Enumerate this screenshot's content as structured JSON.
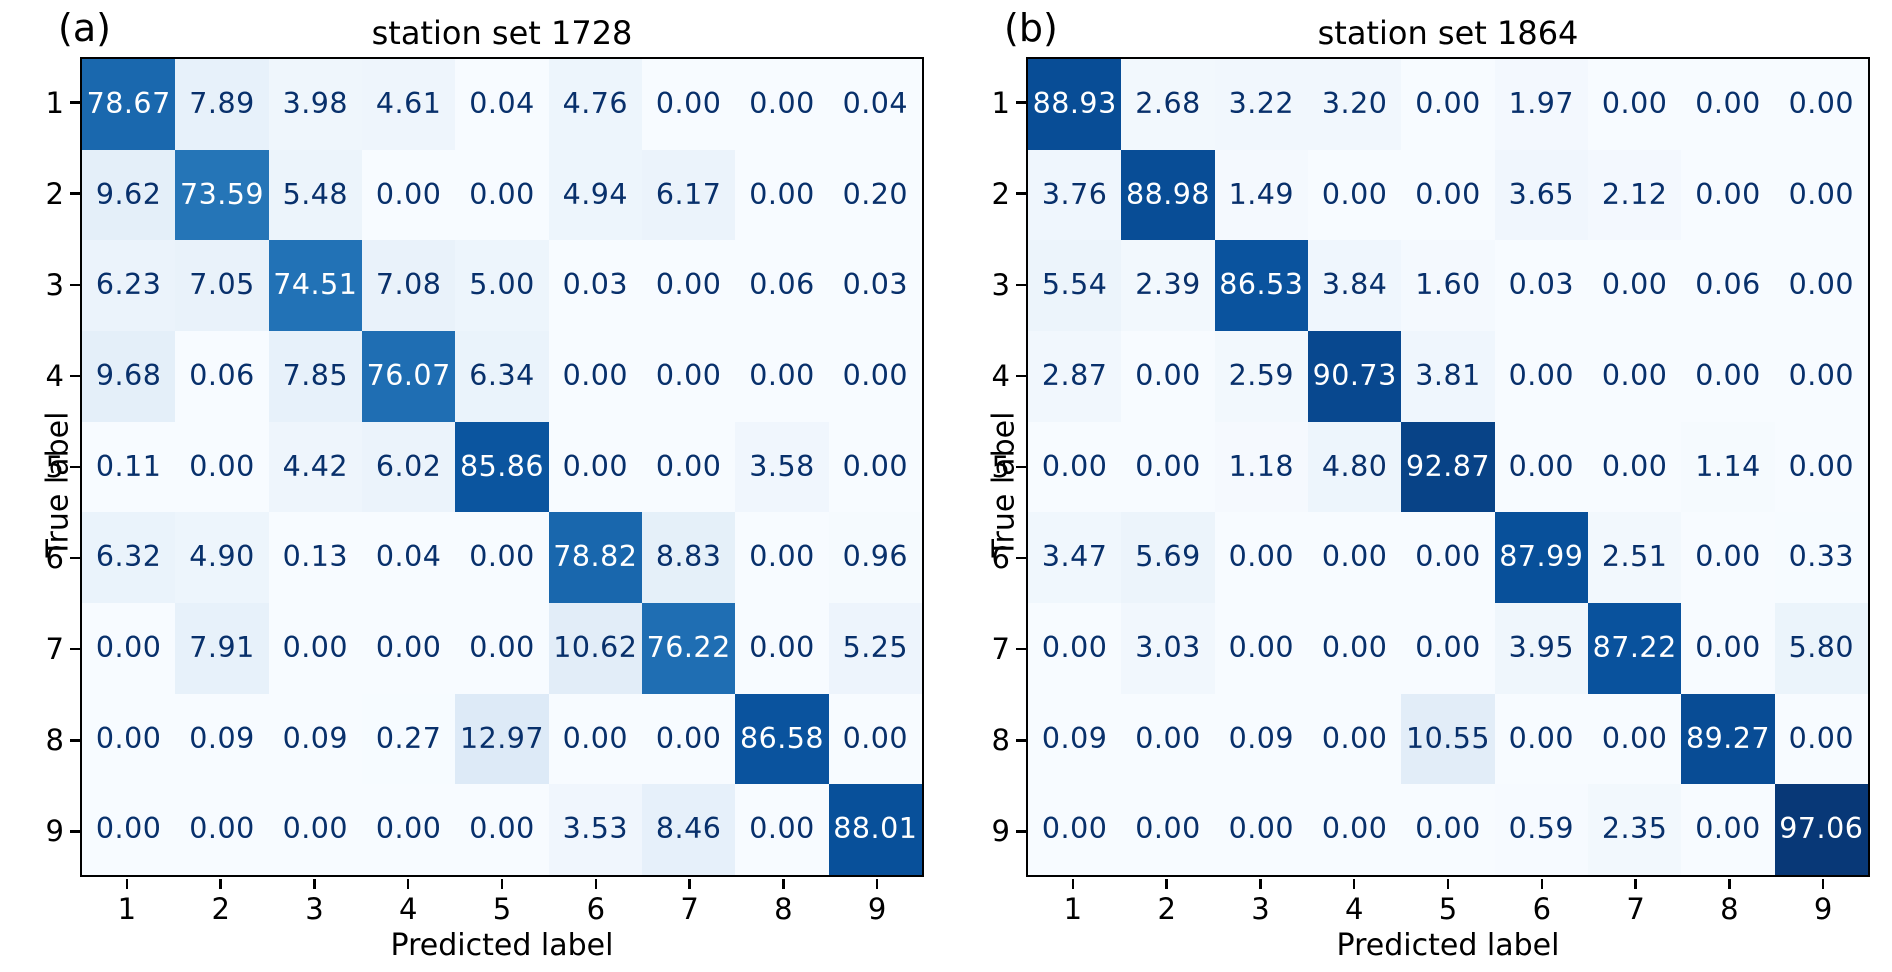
{
  "figure": {
    "panels": [
      {
        "panel_label": "(a)",
        "title": "station set 1728",
        "xlabel": "Predicted label",
        "ylabel": "True label"
      },
      {
        "panel_label": "(b)",
        "title": "station set 1864",
        "xlabel": "Predicted label",
        "ylabel": "True label"
      }
    ]
  },
  "chart_data": [
    {
      "type": "heatmap",
      "panel": "(a)",
      "title": "station set 1728",
      "xlabel": "Predicted label",
      "ylabel": "True label",
      "x_tick_labels": [
        "1",
        "2",
        "3",
        "4",
        "5",
        "6",
        "7",
        "8",
        "9"
      ],
      "y_tick_labels": [
        "1",
        "2",
        "3",
        "4",
        "5",
        "6",
        "7",
        "8",
        "9"
      ],
      "colormap": "Blues",
      "value_range": [
        0,
        100
      ],
      "value_decimals": 2,
      "legend": "none",
      "grid": false,
      "values": [
        [
          78.67,
          7.89,
          3.98,
          4.61,
          0.04,
          4.76,
          0.0,
          0.0,
          0.04
        ],
        [
          9.62,
          73.59,
          5.48,
          0.0,
          0.0,
          4.94,
          6.17,
          0.0,
          0.2
        ],
        [
          6.23,
          7.05,
          74.51,
          7.08,
          5.0,
          0.03,
          0.0,
          0.06,
          0.03
        ],
        [
          9.68,
          0.06,
          7.85,
          76.07,
          6.34,
          0.0,
          0.0,
          0.0,
          0.0
        ],
        [
          0.11,
          0.0,
          4.42,
          6.02,
          85.86,
          0.0,
          0.0,
          3.58,
          0.0
        ],
        [
          6.32,
          4.9,
          0.13,
          0.04,
          0.0,
          78.82,
          8.83,
          0.0,
          0.96
        ],
        [
          0.0,
          7.91,
          0.0,
          0.0,
          0.0,
          10.62,
          76.22,
          0.0,
          5.25
        ],
        [
          0.0,
          0.09,
          0.09,
          0.27,
          12.97,
          0.0,
          0.0,
          86.58,
          0.0
        ],
        [
          0.0,
          0.0,
          0.0,
          0.0,
          0.0,
          3.53,
          8.46,
          0.0,
          88.01
        ]
      ]
    },
    {
      "type": "heatmap",
      "panel": "(b)",
      "title": "station set 1864",
      "xlabel": "Predicted label",
      "ylabel": "True label",
      "x_tick_labels": [
        "1",
        "2",
        "3",
        "4",
        "5",
        "6",
        "7",
        "8",
        "9"
      ],
      "y_tick_labels": [
        "1",
        "2",
        "3",
        "4",
        "5",
        "6",
        "7",
        "8",
        "9"
      ],
      "colormap": "Blues",
      "value_range": [
        0,
        100
      ],
      "value_decimals": 2,
      "legend": "none",
      "grid": false,
      "values": [
        [
          88.93,
          2.68,
          3.22,
          3.2,
          0.0,
          1.97,
          0.0,
          0.0,
          0.0
        ],
        [
          3.76,
          88.98,
          1.49,
          0.0,
          0.0,
          3.65,
          2.12,
          0.0,
          0.0
        ],
        [
          5.54,
          2.39,
          86.53,
          3.84,
          1.6,
          0.03,
          0.0,
          0.06,
          0.0
        ],
        [
          2.87,
          0.0,
          2.59,
          90.73,
          3.81,
          0.0,
          0.0,
          0.0,
          0.0
        ],
        [
          0.0,
          0.0,
          1.18,
          4.8,
          92.87,
          0.0,
          0.0,
          1.14,
          0.0
        ],
        [
          3.47,
          5.69,
          0.0,
          0.0,
          0.0,
          87.99,
          2.51,
          0.0,
          0.33
        ],
        [
          0.0,
          3.03,
          0.0,
          0.0,
          0.0,
          3.95,
          87.22,
          0.0,
          5.8
        ],
        [
          0.09,
          0.0,
          0.09,
          0.0,
          10.55,
          0.0,
          0.0,
          89.27,
          0.0
        ],
        [
          0.0,
          0.0,
          0.0,
          0.0,
          0.0,
          0.59,
          2.35,
          0.0,
          97.06
        ]
      ]
    }
  ],
  "style": {
    "colormap_anchors": [
      "#f7fbff",
      "#deebf7",
      "#c6dbef",
      "#9ecae1",
      "#6baed6",
      "#4292c6",
      "#2171b5",
      "#08519c",
      "#08306b"
    ],
    "cell_text_dark": "#08306b",
    "cell_text_light": "#ffffff",
    "text_light_threshold": 50,
    "axis_color": "#000000"
  }
}
